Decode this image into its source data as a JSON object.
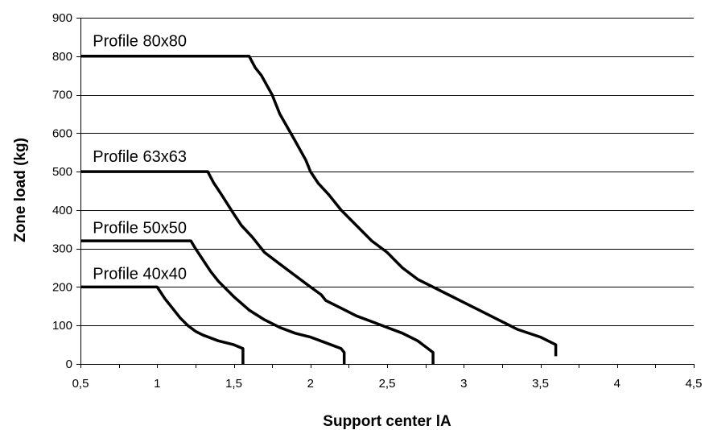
{
  "chart_data": {
    "type": "line",
    "title": "",
    "xlabel": "Support center lA",
    "ylabel": "Zone load (kg)",
    "xlim": [
      0.5,
      4.5
    ],
    "ylim": [
      0,
      900
    ],
    "x_ticks": [
      0.5,
      1,
      1.5,
      2,
      2.5,
      3,
      3.5,
      4,
      4.5
    ],
    "x_tick_labels": [
      "0,5",
      "1",
      "1,5",
      "2",
      "2,5",
      "3",
      "3,5",
      "4",
      "4,5"
    ],
    "y_ticks": [
      0,
      100,
      200,
      300,
      400,
      500,
      600,
      700,
      800,
      900
    ],
    "y_tick_labels": [
      "0",
      "100",
      "200",
      "300",
      "400",
      "500",
      "600",
      "700",
      "800",
      "900"
    ],
    "grid": "horizontal",
    "legend": "inline labels above each curve",
    "series": [
      {
        "name": "Profile 80x80",
        "label_at": [
          0.58,
          840
        ],
        "points": [
          [
            0.5,
            800
          ],
          [
            1.6,
            800
          ],
          [
            1.64,
            770
          ],
          [
            1.68,
            750
          ],
          [
            1.75,
            700
          ],
          [
            1.8,
            650
          ],
          [
            1.9,
            580
          ],
          [
            1.97,
            530
          ],
          [
            2.0,
            500
          ],
          [
            2.05,
            470
          ],
          [
            2.12,
            440
          ],
          [
            2.2,
            400
          ],
          [
            2.3,
            360
          ],
          [
            2.4,
            320
          ],
          [
            2.5,
            290
          ],
          [
            2.55,
            270
          ],
          [
            2.6,
            250
          ],
          [
            2.7,
            220
          ],
          [
            2.8,
            200
          ],
          [
            2.9,
            180
          ],
          [
            3.0,
            160
          ],
          [
            3.1,
            140
          ],
          [
            3.2,
            120
          ],
          [
            3.3,
            100
          ],
          [
            3.35,
            90
          ],
          [
            3.5,
            70
          ],
          [
            3.55,
            60
          ],
          [
            3.6,
            50
          ],
          [
            3.6,
            20
          ]
        ]
      },
      {
        "name": "Profile 63x63",
        "label_at": [
          0.58,
          540
        ],
        "points": [
          [
            0.5,
            500
          ],
          [
            1.33,
            500
          ],
          [
            1.37,
            470
          ],
          [
            1.42,
            440
          ],
          [
            1.5,
            390
          ],
          [
            1.55,
            360
          ],
          [
            1.62,
            330
          ],
          [
            1.7,
            290
          ],
          [
            1.8,
            260
          ],
          [
            1.9,
            230
          ],
          [
            2.0,
            200
          ],
          [
            2.07,
            180
          ],
          [
            2.1,
            165
          ],
          [
            2.2,
            145
          ],
          [
            2.3,
            125
          ],
          [
            2.4,
            110
          ],
          [
            2.5,
            95
          ],
          [
            2.6,
            80
          ],
          [
            2.7,
            60
          ],
          [
            2.75,
            45
          ],
          [
            2.8,
            30
          ],
          [
            2.8,
            0
          ]
        ]
      },
      {
        "name": "Profile 50x50",
        "label_at": [
          0.58,
          355
        ],
        "points": [
          [
            0.5,
            320
          ],
          [
            1.22,
            320
          ],
          [
            1.25,
            300
          ],
          [
            1.3,
            270
          ],
          [
            1.35,
            240
          ],
          [
            1.4,
            215
          ],
          [
            1.5,
            175
          ],
          [
            1.6,
            140
          ],
          [
            1.7,
            115
          ],
          [
            1.8,
            95
          ],
          [
            1.9,
            80
          ],
          [
            2.0,
            70
          ],
          [
            2.1,
            55
          ],
          [
            2.2,
            40
          ],
          [
            2.22,
            30
          ],
          [
            2.22,
            0
          ]
        ]
      },
      {
        "name": "Profile 40x40",
        "label_at": [
          0.58,
          235
        ],
        "points": [
          [
            0.5,
            200
          ],
          [
            1.0,
            200
          ],
          [
            1.05,
            170
          ],
          [
            1.1,
            145
          ],
          [
            1.15,
            120
          ],
          [
            1.2,
            100
          ],
          [
            1.25,
            85
          ],
          [
            1.3,
            75
          ],
          [
            1.4,
            60
          ],
          [
            1.45,
            55
          ],
          [
            1.5,
            50
          ],
          [
            1.56,
            40
          ],
          [
            1.56,
            0
          ]
        ]
      }
    ]
  }
}
